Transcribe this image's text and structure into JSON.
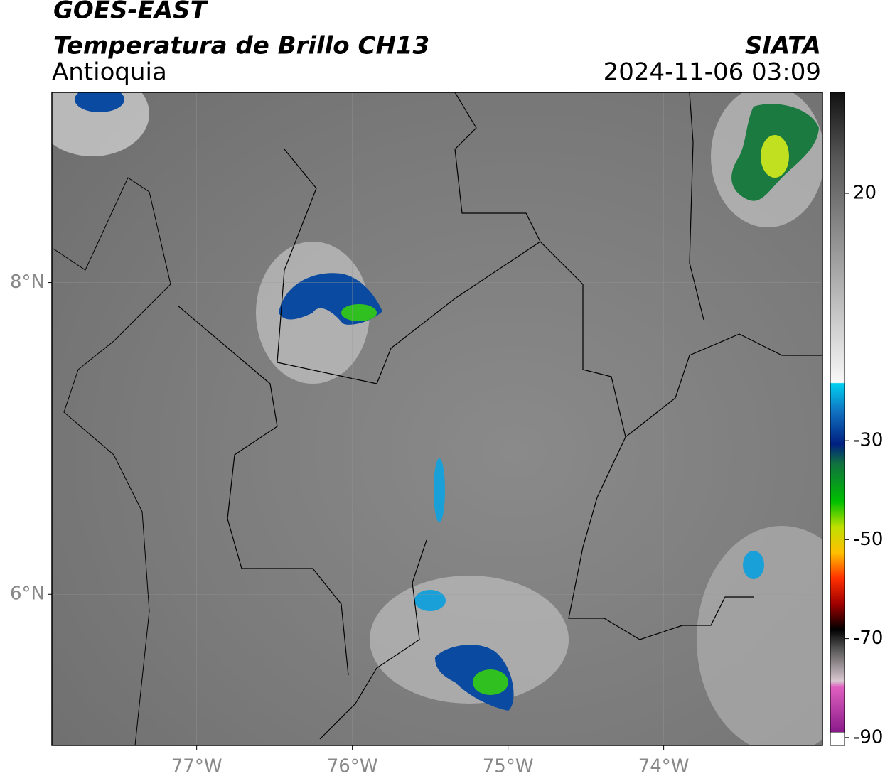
{
  "header": {
    "title": "GOES-EAST",
    "subtitle": "Temperatura de Brillo CH13",
    "region": "Antioquia",
    "source": "SIATA",
    "timestamp": "2024-11-06 03:09"
  },
  "map": {
    "lonlim": [
      -77.93,
      -72.98
    ],
    "latlim": [
      5.03,
      9.22
    ],
    "lonticks": [
      {
        "value": -77,
        "label": "77°W"
      },
      {
        "value": -76,
        "label": "76°W"
      },
      {
        "value": -75,
        "label": "75°W"
      },
      {
        "value": -74,
        "label": "74°W"
      }
    ],
    "latticks": [
      {
        "value": 8,
        "label": "8°N"
      },
      {
        "value": 6,
        "label": "6°N"
      }
    ],
    "grid": true
  },
  "colorbar": {
    "lim": [
      -91.6,
      40.4
    ],
    "ticks": [
      20,
      -30,
      -50,
      -70,
      -90
    ]
  }
}
